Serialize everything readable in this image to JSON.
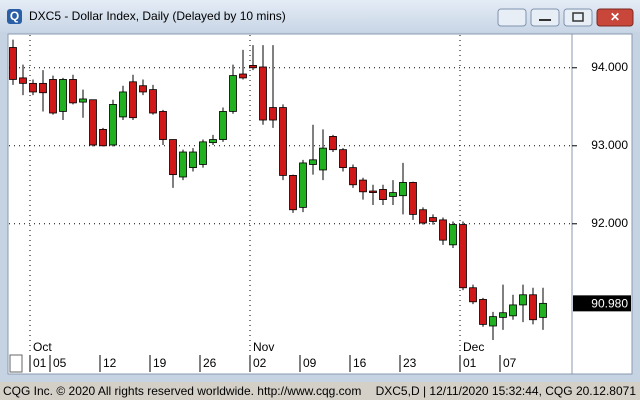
{
  "window": {
    "title": "DXC5 - Dollar Index, Daily (Delayed by 10 mins)"
  },
  "chart_data": {
    "type": "candlestick",
    "categories": [
      null,
      null,
      "01",
      null,
      "05",
      null,
      null,
      null,
      null,
      "12",
      null,
      null,
      null,
      null,
      "19",
      null,
      null,
      null,
      null,
      "26",
      null,
      null,
      null,
      null,
      "02",
      null,
      null,
      null,
      null,
      "09",
      null,
      null,
      null,
      null,
      "16",
      null,
      null,
      null,
      null,
      "23",
      null,
      null,
      null,
      null,
      null,
      "01",
      null,
      null,
      null,
      "07",
      null,
      null,
      null,
      null
    ],
    "months": [
      "Oct",
      "Nov",
      "Dec"
    ],
    "open": [
      94.26,
      93.87,
      93.8,
      93.8,
      93.85,
      93.44,
      93.85,
      93.56,
      93.59,
      93.21,
      93.01,
      93.37,
      93.82,
      93.77,
      93.72,
      93.44,
      93.08,
      92.6,
      92.72,
      92.76,
      93.04,
      93.08,
      93.44,
      93.92,
      94.03,
      94.01,
      93.49,
      93.49,
      92.62,
      92.21,
      92.76,
      92.69,
      93.12,
      92.95,
      92.72,
      92.56,
      92.42,
      92.44,
      92.35,
      92.36,
      92.53,
      92.18,
      92.08,
      92.05,
      91.73,
      91.99,
      91.18,
      91.03,
      90.69,
      90.8,
      90.82,
      90.96,
      91.09,
      90.8
    ],
    "high": [
      94.36,
      94.04,
      93.85,
      93.97,
      93.9,
      93.87,
      93.91,
      93.72,
      93.59,
      93.23,
      93.59,
      93.77,
      93.91,
      93.85,
      93.78,
      93.46,
      93.08,
      92.95,
      92.97,
      93.08,
      93.14,
      93.49,
      94.04,
      94.23,
      94.29,
      94.29,
      94.29,
      93.53,
      92.63,
      92.82,
      93.27,
      93.21,
      93.14,
      92.97,
      92.76,
      92.59,
      92.5,
      92.5,
      92.56,
      92.78,
      92.54,
      92.21,
      92.12,
      92.08,
      92.03,
      92.03,
      91.22,
      91.05,
      90.87,
      91.22,
      91.09,
      91.22,
      91.18,
      91.18
    ],
    "low": [
      93.78,
      93.65,
      93.65,
      93.44,
      93.4,
      93.33,
      93.53,
      93.36,
      92.99,
      92.99,
      92.99,
      93.33,
      93.33,
      93.65,
      93.4,
      93.01,
      92.46,
      92.56,
      92.67,
      92.72,
      93.01,
      93.05,
      93.41,
      93.85,
      93.97,
      93.27,
      93.23,
      92.56,
      92.14,
      92.15,
      92.63,
      92.56,
      92.92,
      92.67,
      92.46,
      92.31,
      92.24,
      92.24,
      92.24,
      92.12,
      92.05,
      91.99,
      91.99,
      91.73,
      91.69,
      91.15,
      90.97,
      90.68,
      90.51,
      90.64,
      90.77,
      90.74,
      90.71,
      90.64
    ],
    "close": [
      93.85,
      93.8,
      93.69,
      93.68,
      93.42,
      93.85,
      93.55,
      93.6,
      93.01,
      93.0,
      93.53,
      93.69,
      93.36,
      93.69,
      93.42,
      93.08,
      92.63,
      92.92,
      92.92,
      93.05,
      93.08,
      93.44,
      93.9,
      93.87,
      94.0,
      93.33,
      93.33,
      92.62,
      92.18,
      92.78,
      92.82,
      92.97,
      92.95,
      92.72,
      92.5,
      92.41,
      92.4,
      92.31,
      92.4,
      92.53,
      92.12,
      92.01,
      92.03,
      91.79,
      91.99,
      91.18,
      91.0,
      90.71,
      90.81,
      90.86,
      90.96,
      91.09,
      90.77,
      90.98
    ],
    "up_color": "#20b020",
    "down_color": "#d01818",
    "ylim": [
      90.1,
      94.42
    ],
    "yticks": [
      {
        "value": 92,
        "label": "92.000"
      },
      {
        "value": 93,
        "label": "93.000"
      },
      {
        "value": 94,
        "label": "94.000"
      }
    ],
    "last_price": {
      "value": 90.98,
      "label": "90.980"
    },
    "grid": true
  },
  "footer": {
    "left": "CQG Inc. © 2020 All rights reserved worldwide. http://www.cqg.com",
    "right": "DXC5,D | 12/11/2020 15:32:44, CQG 20.12.8071"
  }
}
